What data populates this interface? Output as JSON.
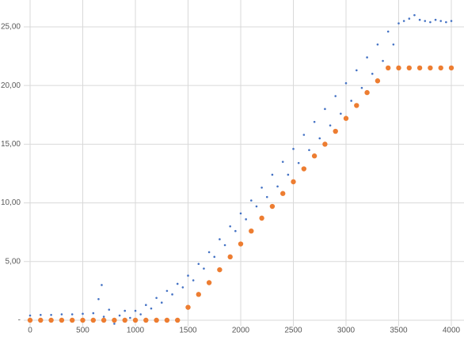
{
  "chart_data": {
    "type": "scatter",
    "xlim": [
      0,
      4100
    ],
    "ylim": [
      -0.5,
      27
    ],
    "xticks": [
      0,
      500,
      1000,
      1500,
      2000,
      2500,
      3000,
      3500,
      4000
    ],
    "yticks": [
      {
        "value": 0,
        "label": "-"
      },
      {
        "value": 5,
        "label": "5,00"
      },
      {
        "value": 10,
        "label": "10,00"
      },
      {
        "value": 15,
        "label": "15,00"
      },
      {
        "value": 20,
        "label": "20,00"
      },
      {
        "value": 25,
        "label": "25,00"
      }
    ],
    "grid": true,
    "series": [
      {
        "color": "#4472c4",
        "marker_size": 1.3,
        "x": [
          0,
          100,
          200,
          300,
          400,
          500,
          600,
          650,
          680,
          700,
          750,
          800,
          850,
          900,
          950,
          1000,
          1100,
          1200,
          1300,
          1400,
          1500,
          1600,
          1700,
          1800,
          1900,
          2000,
          2100,
          2200,
          2300,
          2400,
          2500,
          2600,
          2700,
          2800,
          2900,
          3000,
          3100,
          3200,
          3300,
          3400,
          1050,
          1150,
          1250,
          1350,
          1450,
          1550,
          1650,
          1750,
          1850,
          1950,
          2050,
          2150,
          2250,
          2350,
          2450,
          2550,
          2650,
          2750,
          2850,
          2950,
          3050,
          3150,
          3250,
          3350,
          3450,
          3500,
          3550,
          3600,
          3650,
          3700,
          3750,
          3800,
          3850,
          3900,
          3950,
          4000
        ],
        "values": [
          0.4,
          0.45,
          0.45,
          0.5,
          0.5,
          0.55,
          0.6,
          1.8,
          3.0,
          0.3,
          0.9,
          -0.3,
          0.4,
          0.8,
          0.2,
          0.8,
          1.3,
          1.9,
          2.5,
          3.1,
          3.8,
          4.8,
          5.8,
          6.9,
          8.0,
          9.1,
          10.2,
          11.3,
          12.4,
          13.5,
          14.6,
          15.8,
          16.9,
          18.0,
          19.1,
          20.2,
          21.3,
          22.4,
          23.5,
          24.6,
          0.5,
          1.0,
          1.5,
          2.2,
          2.8,
          3.4,
          4.4,
          5.4,
          6.4,
          7.6,
          8.6,
          9.7,
          10.5,
          11.4,
          12.4,
          13.4,
          14.5,
          15.5,
          16.6,
          17.6,
          18.7,
          19.8,
          21.0,
          22.1,
          23.5,
          25.3,
          25.5,
          25.7,
          26.0,
          25.6,
          25.5,
          25.4,
          25.6,
          25.5,
          25.4,
          25.5
        ]
      },
      {
        "color": "#ed7d31",
        "marker_size": 3.2,
        "x": [
          0,
          100,
          200,
          300,
          400,
          500,
          600,
          700,
          800,
          900,
          1000,
          1100,
          1200,
          1300,
          1400,
          1500,
          1600,
          1700,
          1800,
          1900,
          2000,
          2100,
          2200,
          2300,
          2400,
          2500,
          2600,
          2700,
          2800,
          2900,
          3000,
          3100,
          3200,
          3300,
          3400,
          3500,
          3600,
          3700,
          3800,
          3900,
          4000
        ],
        "values": [
          0,
          0,
          0,
          0,
          0,
          0,
          0,
          0,
          0,
          0,
          0,
          0,
          0,
          0,
          0,
          1.1,
          2.2,
          3.2,
          4.3,
          5.4,
          6.5,
          7.6,
          8.7,
          9.7,
          10.8,
          11.8,
          12.9,
          14.0,
          15.0,
          16.1,
          17.2,
          18.3,
          19.4,
          20.4,
          21.5,
          21.5,
          21.5,
          21.5,
          21.5,
          21.5,
          21.5
        ]
      }
    ]
  }
}
